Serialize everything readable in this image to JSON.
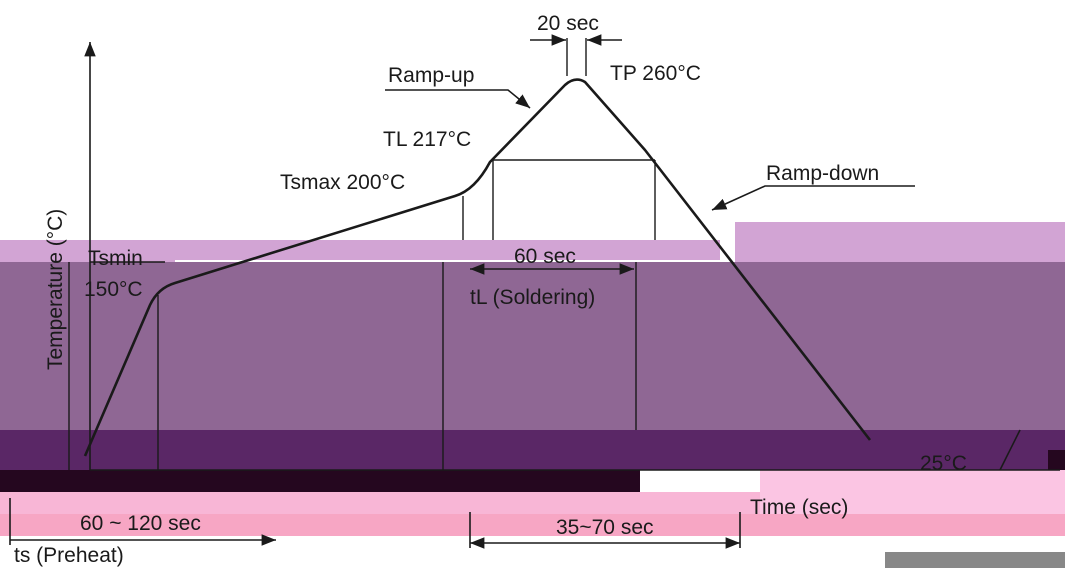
{
  "axes": {
    "y_label": "Temperature (°C)",
    "x_label": "Time (sec)"
  },
  "profile_labels": {
    "peak": "TP 260°C",
    "liquidus": "TL 217°C",
    "tsmax": "Tsmax 200°C",
    "tsmin_name": "Tsmin",
    "tsmin_value": "150°C",
    "ambient": "25°C",
    "ramp_up": "Ramp-up",
    "ramp_down": "Ramp-down"
  },
  "durations": {
    "peak_time": "20 sec",
    "liquidus_time": "60 sec",
    "liquidus_name": "tL (Soldering)",
    "preheat_time": "60 ~ 120 sec",
    "preheat_name": "ts (Preheat)",
    "ramp_time": "35~70 sec"
  },
  "colors": {
    "band_light": "#d2a4d4",
    "band_mid": "#8f6794",
    "band_dark": "#5a2766",
    "band_pink": "#f8b6d6",
    "band_pink_light": "#fbc5e3",
    "band_pink_lower": "#f7a6c4",
    "band_black": "#25071f"
  }
}
